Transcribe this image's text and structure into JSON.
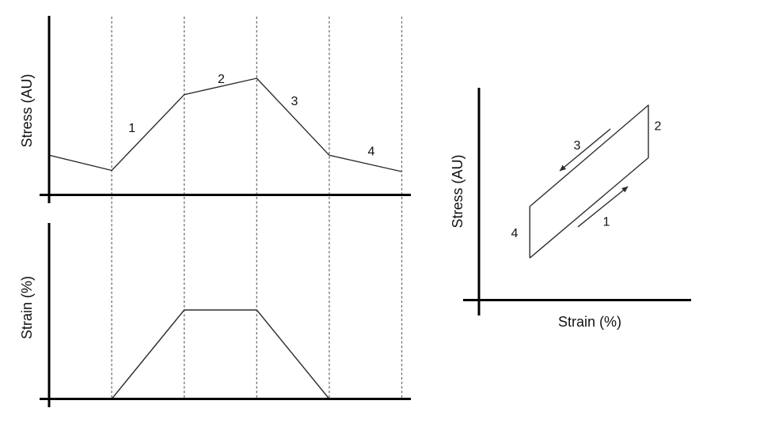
{
  "figure": {
    "background": "#ffffff",
    "axis_color": "#000000",
    "curve_color": "#2e2e2e",
    "gridline_color": "#6e6e6e"
  },
  "chart_data": [
    {
      "id": "stress-vs-time",
      "type": "line",
      "title": "",
      "xlabel": "",
      "ylabel": "Stress (AU)",
      "x_unit": "time (phase number, dashed lines at phase boundaries)",
      "y_unit": "stress, arbitrary units normalized 0-1",
      "grid": "vertical dashed lines shared with strain plot",
      "phase_boundaries": [
        1,
        2,
        3,
        4,
        5
      ],
      "x": [
        0.14,
        1,
        2,
        3,
        4,
        5
      ],
      "y": [
        0.34,
        0.21,
        0.86,
        1.0,
        0.34,
        0.2
      ],
      "annotations": [
        {
          "text": "1",
          "x": 1.28,
          "y": 0.57
        },
        {
          "text": "2",
          "x": 2.51,
          "y": 0.99
        },
        {
          "text": "3",
          "x": 3.52,
          "y": 0.8
        },
        {
          "text": "4",
          "x": 4.58,
          "y": 0.37
        }
      ]
    },
    {
      "id": "strain-vs-time",
      "type": "line",
      "title": "",
      "xlabel": "",
      "ylabel": "Strain (%)",
      "x_unit": "time (phase number, dashed lines at phase boundaries)",
      "y_unit": "strain, percent normalized 0-1",
      "grid": "vertical dashed lines shared with stress plot",
      "phase_boundaries": [
        1,
        2,
        3,
        4,
        5
      ],
      "x": [
        0.14,
        1,
        2,
        3,
        4,
        5
      ],
      "y": [
        0,
        0,
        1,
        1,
        0,
        0
      ],
      "annotations": []
    },
    {
      "id": "stress-vs-strain",
      "type": "line",
      "title": "",
      "xlabel": "Strain (%)",
      "ylabel": "Stress (AU)",
      "x_unit": "strain normalized 0-1",
      "y_unit": "stress normalized 0-1",
      "grid": "off",
      "closed_loop": true,
      "x": [
        0.3,
        1.0,
        1.0,
        0.3,
        0.3
      ],
      "y": [
        0.215,
        0.73,
        1.0,
        0.48,
        0.215
      ],
      "annotations": [
        {
          "text": "1",
          "x": 0.752,
          "y": 0.4
        },
        {
          "text": "2",
          "x": 1.056,
          "y": 0.89
        },
        {
          "text": "3",
          "x": 0.579,
          "y": 0.79
        },
        {
          "text": "4",
          "x": 0.21,
          "y": 0.34
        }
      ],
      "direction_arrows": [
        {
          "along_segment": "1",
          "from": [
            0.584,
            0.375
          ],
          "to": [
            0.879,
            0.582
          ]
        },
        {
          "along_segment": "3",
          "from": [
            0.776,
            0.878
          ],
          "to": [
            0.477,
            0.663
          ]
        }
      ]
    }
  ]
}
